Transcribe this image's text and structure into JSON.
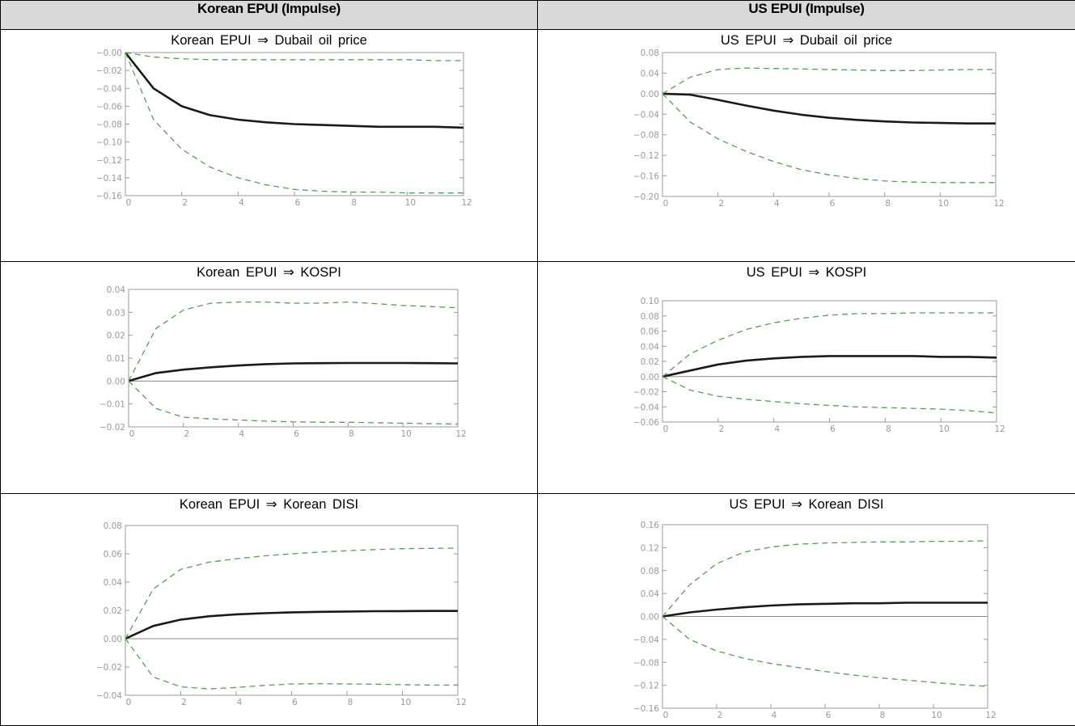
{
  "headers": [
    "Korean EPUI (Impulse)",
    "US EPUI (Impulse)"
  ],
  "colors": {
    "response": "#1a1a1a",
    "band": "#5a9a5a",
    "zero": "#888888",
    "axis": "#999999"
  },
  "chart_data": [
    {
      "type": "line",
      "title": "Korean EPUI ⇒ Dubail oil price",
      "x": [
        0,
        1,
        2,
        3,
        4,
        5,
        6,
        7,
        8,
        9,
        10,
        11,
        12
      ],
      "xticks": [
        0,
        2,
        4,
        6,
        8,
        10,
        12
      ],
      "xlim": [
        0,
        12
      ],
      "ylim": [
        -0.16,
        0.0
      ],
      "yticks": [
        -0.16,
        -0.14,
        -0.12,
        -0.1,
        -0.08,
        -0.06,
        -0.04,
        -0.02,
        0.0
      ],
      "ytick_labels": [
        "−0.16",
        "−0.14",
        "−0.12",
        "−0.10",
        "−0.08",
        "−0.06",
        "−0.04",
        "−0.02",
        "−0.00"
      ],
      "zero_line": false,
      "series": [
        {
          "role": "response",
          "values": [
            0,
            -0.04,
            -0.06,
            -0.07,
            -0.075,
            -0.078,
            -0.08,
            -0.081,
            -0.082,
            -0.083,
            -0.083,
            -0.083,
            -0.084
          ]
        },
        {
          "role": "upper",
          "values": [
            0,
            -0.005,
            -0.007,
            -0.008,
            -0.008,
            -0.008,
            -0.008,
            -0.008,
            -0.008,
            -0.008,
            -0.008,
            -0.009,
            -0.009
          ]
        },
        {
          "role": "lower",
          "values": [
            0,
            -0.075,
            -0.108,
            -0.128,
            -0.14,
            -0.148,
            -0.153,
            -0.155,
            -0.156,
            -0.156,
            -0.157,
            -0.157,
            -0.157
          ]
        }
      ]
    },
    {
      "type": "line",
      "title": "US EPUI ⇒ Dubail oil price",
      "x": [
        0,
        1,
        2,
        3,
        4,
        5,
        6,
        7,
        8,
        9,
        10,
        11,
        12
      ],
      "xticks": [
        0,
        2,
        4,
        6,
        8,
        10,
        12
      ],
      "xlim": [
        0,
        12
      ],
      "ylim": [
        -0.2,
        0.08
      ],
      "yticks": [
        -0.2,
        -0.16,
        -0.12,
        -0.08,
        -0.04,
        0.0,
        0.04,
        0.08
      ],
      "ytick_labels": [
        "−0.20",
        "−0.16",
        "−0.12",
        "−0.08",
        "−0.04",
        "0.00",
        "0.04",
        "0.08"
      ],
      "zero_line": true,
      "series": [
        {
          "role": "response",
          "values": [
            0,
            -0.002,
            -0.012,
            -0.023,
            -0.033,
            -0.041,
            -0.047,
            -0.051,
            -0.054,
            -0.056,
            -0.057,
            -0.058,
            -0.058
          ]
        },
        {
          "role": "upper",
          "values": [
            0,
            0.032,
            0.047,
            0.05,
            0.049,
            0.048,
            0.047,
            0.046,
            0.045,
            0.045,
            0.046,
            0.047,
            0.047
          ]
        },
        {
          "role": "lower",
          "values": [
            0,
            -0.055,
            -0.088,
            -0.112,
            -0.132,
            -0.148,
            -0.158,
            -0.165,
            -0.17,
            -0.172,
            -0.173,
            -0.173,
            -0.173
          ]
        }
      ]
    },
    {
      "type": "line",
      "title": "Korean EPUI ⇒ KOSPI",
      "x": [
        0,
        1,
        2,
        3,
        4,
        5,
        6,
        7,
        8,
        9,
        10,
        11,
        12
      ],
      "xticks": [
        0,
        2,
        4,
        6,
        8,
        10,
        12
      ],
      "xlim": [
        0,
        12
      ],
      "ylim": [
        -0.02,
        0.04
      ],
      "yticks": [
        -0.02,
        -0.01,
        0.0,
        0.01,
        0.02,
        0.03,
        0.04
      ],
      "ytick_labels": [
        "−0.02",
        "−0.01",
        "0.00",
        "0.01",
        "0.02",
        "0.03",
        "0.04"
      ],
      "zero_line": true,
      "series": [
        {
          "role": "response",
          "values": [
            0,
            0.0035,
            0.005,
            0.006,
            0.0068,
            0.0074,
            0.0077,
            0.0078,
            0.0079,
            0.0079,
            0.0079,
            0.0078,
            0.0077
          ]
        },
        {
          "role": "upper",
          "values": [
            0,
            0.023,
            0.031,
            0.034,
            0.0345,
            0.0345,
            0.034,
            0.034,
            0.0345,
            0.0338,
            0.033,
            0.0325,
            0.032
          ]
        },
        {
          "role": "lower",
          "values": [
            0,
            -0.012,
            -0.0158,
            -0.0165,
            -0.017,
            -0.0175,
            -0.0178,
            -0.018,
            -0.018,
            -0.0182,
            -0.0184,
            -0.0186,
            -0.0188
          ]
        }
      ]
    },
    {
      "type": "line",
      "title": "US EPUI ⇒ KOSPI",
      "x": [
        0,
        1,
        2,
        3,
        4,
        5,
        6,
        7,
        8,
        9,
        10,
        11,
        12
      ],
      "xticks": [
        0,
        2,
        4,
        6,
        8,
        10,
        12
      ],
      "xlim": [
        0,
        12
      ],
      "ylim": [
        -0.06,
        0.1
      ],
      "yticks": [
        -0.06,
        -0.04,
        -0.02,
        0.0,
        0.02,
        0.04,
        0.06,
        0.08,
        0.1
      ],
      "ytick_labels": [
        "−0.06",
        "−0.04",
        "−0.02",
        "0.00",
        "0.02",
        "0.04",
        "0.06",
        "0.08",
        "0.10"
      ],
      "zero_line": true,
      "series": [
        {
          "role": "response",
          "values": [
            0,
            0.008,
            0.016,
            0.021,
            0.024,
            0.026,
            0.027,
            0.027,
            0.027,
            0.027,
            0.026,
            0.026,
            0.025
          ]
        },
        {
          "role": "upper",
          "values": [
            0,
            0.03,
            0.048,
            0.062,
            0.071,
            0.077,
            0.081,
            0.083,
            0.083,
            0.084,
            0.084,
            0.084,
            0.084
          ]
        },
        {
          "role": "lower",
          "values": [
            0,
            -0.018,
            -0.026,
            -0.03,
            -0.033,
            -0.036,
            -0.038,
            -0.04,
            -0.041,
            -0.042,
            -0.043,
            -0.045,
            -0.048
          ]
        }
      ]
    },
    {
      "type": "line",
      "title": "Korean EPUI ⇒ Korean DISI",
      "x": [
        0,
        1,
        2,
        3,
        4,
        5,
        6,
        7,
        8,
        9,
        10,
        11,
        12
      ],
      "xticks": [
        0,
        2,
        4,
        6,
        8,
        10,
        12
      ],
      "xlim": [
        0,
        12
      ],
      "ylim": [
        -0.04,
        0.08
      ],
      "yticks": [
        -0.04,
        -0.02,
        0.0,
        0.02,
        0.04,
        0.06,
        0.08
      ],
      "ytick_labels": [
        "−0.04",
        "−0.02",
        "0.00",
        "0.02",
        "0.04",
        "0.06",
        "0.08"
      ],
      "zero_line": true,
      "series": [
        {
          "role": "response",
          "values": [
            0,
            0.009,
            0.0135,
            0.0158,
            0.0172,
            0.018,
            0.0186,
            0.019,
            0.0192,
            0.0194,
            0.0195,
            0.0196,
            0.0196
          ]
        },
        {
          "role": "upper",
          "values": [
            0,
            0.035,
            0.049,
            0.054,
            0.0565,
            0.0585,
            0.06,
            0.0612,
            0.0622,
            0.063,
            0.0636,
            0.0638,
            0.064
          ]
        },
        {
          "role": "lower",
          "values": [
            0,
            -0.027,
            -0.034,
            -0.0355,
            -0.0345,
            -0.033,
            -0.032,
            -0.0318,
            -0.032,
            -0.0322,
            -0.0325,
            -0.0328,
            -0.0328
          ]
        }
      ]
    },
    {
      "type": "line",
      "title": "US EPUI ⇒ Korean DISI",
      "x": [
        0,
        1,
        2,
        3,
        4,
        5,
        6,
        7,
        8,
        9,
        10,
        11,
        12
      ],
      "xticks": [
        0,
        2,
        4,
        6,
        8,
        10,
        12
      ],
      "xlim": [
        0,
        12
      ],
      "ylim": [
        -0.16,
        0.16
      ],
      "yticks": [
        -0.16,
        -0.12,
        -0.08,
        -0.04,
        0.0,
        0.04,
        0.08,
        0.12,
        0.16
      ],
      "ytick_labels": [
        "−0.16",
        "−0.12",
        "−0.08",
        "−0.04",
        "0.00",
        "0.04",
        "0.08",
        "0.12",
        "0.16"
      ],
      "zero_line": true,
      "series": [
        {
          "role": "response",
          "values": [
            0,
            0.007,
            0.012,
            0.016,
            0.019,
            0.021,
            0.022,
            0.023,
            0.023,
            0.024,
            0.024,
            0.024,
            0.024
          ]
        },
        {
          "role": "upper",
          "values": [
            0,
            0.055,
            0.092,
            0.112,
            0.121,
            0.126,
            0.128,
            0.129,
            0.13,
            0.13,
            0.131,
            0.131,
            0.132
          ]
        },
        {
          "role": "lower",
          "values": [
            0,
            -0.04,
            -0.06,
            -0.073,
            -0.082,
            -0.089,
            -0.096,
            -0.102,
            -0.107,
            -0.111,
            -0.115,
            -0.119,
            -0.122
          ]
        }
      ]
    }
  ]
}
